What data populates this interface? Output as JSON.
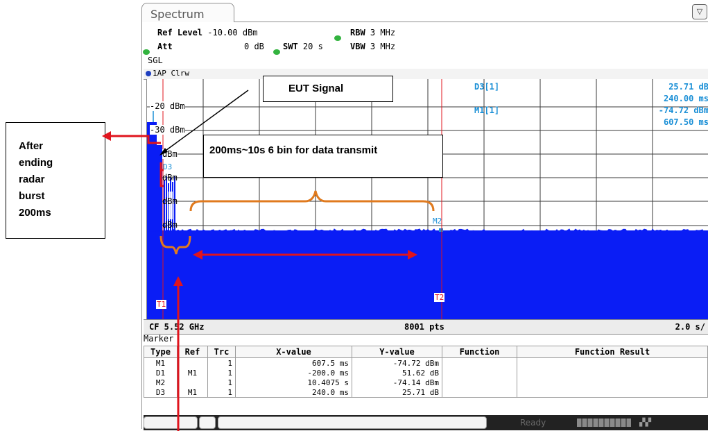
{
  "window": {
    "tab_label": "Spectrum",
    "minimize_glyph": "▽"
  },
  "header": {
    "ref_level_label": "Ref Level",
    "ref_level_value": "-10.00 dBm",
    "att_label": "Att",
    "att_value": "0 dB",
    "swt_label": "SWT",
    "swt_value": "20 s",
    "rbw_label": "RBW",
    "rbw_value": "3 MHz",
    "vbw_label": "VBW",
    "vbw_value": "3 MHz",
    "mode": "SGL",
    "status_dot_color": "#33b33f"
  },
  "trace": {
    "label": "1AP Clrw",
    "dot_color": "#1f3fbf"
  },
  "plot": {
    "y_labels": [
      "-20 dBm",
      "-30 dBm",
      "dBm",
      "dBm",
      "dBm",
      "dBm"
    ],
    "marker_readouts": [
      {
        "name": "D3[1]",
        "value1": "25.71 dB",
        "value2": "240.00 ms"
      },
      {
        "name": "M1[1]",
        "value1": "-74.72 dBm",
        "value2": "607.50 ms"
      }
    ],
    "markers": {
      "d3": "D3",
      "m2": "M2",
      "t1": "T1",
      "t2": "T2"
    },
    "trace_color": "#0a1df5",
    "readout_color": "#1a8fd6",
    "limit_color": "#e0141d"
  },
  "footer": {
    "cf": "CF 5.52 GHz",
    "points": "8001 pts",
    "span": "2.0 s/"
  },
  "marker_table": {
    "title": "Marker",
    "headers": [
      "Type",
      "Ref",
      "Trc",
      "X-value",
      "Y-value",
      "Function",
      "Function Result"
    ],
    "rows": [
      {
        "type": "M1",
        "ref": "",
        "trc": "1",
        "x": "607.5 ms",
        "y": "-74.72 dBm",
        "func": "",
        "result": ""
      },
      {
        "type": "D1",
        "ref": "M1",
        "trc": "1",
        "x": "-200.0 ms",
        "y": "51.62 dB",
        "func": "",
        "result": ""
      },
      {
        "type": "M2",
        "ref": "",
        "trc": "1",
        "x": "10.4075 s",
        "y": "-74.14 dBm",
        "func": "",
        "result": ""
      },
      {
        "type": "D3",
        "ref": "M1",
        "trc": "1",
        "x": "240.0 ms",
        "y": "25.71 dB",
        "func": "",
        "result": ""
      }
    ]
  },
  "status": {
    "ready": "Ready"
  },
  "annotations": {
    "eut_signal": "EUT Signal",
    "data_transmit": "200ms~10s 6 bin for data transmit",
    "radar_note": "After ending radar burst 200ms",
    "arrow_color": "#e0141d",
    "brace_color": "#e07a1e"
  }
}
